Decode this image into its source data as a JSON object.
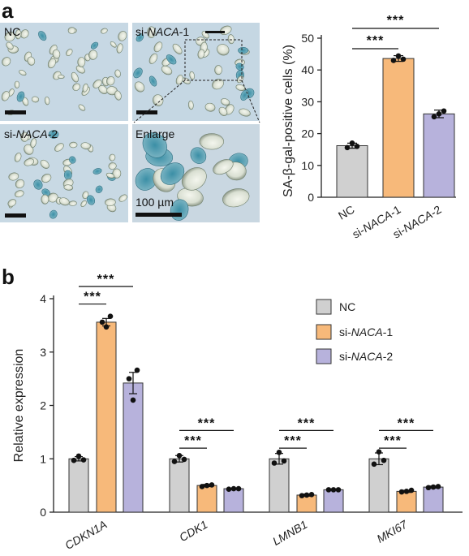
{
  "panel_a": {
    "letter": "a",
    "images": [
      {
        "label": "NC"
      },
      {
        "label_pre": "si-",
        "label_gene": "NACA",
        "label_post": "-1"
      },
      {
        "label_pre": "si-",
        "label_gene": "NACA",
        "label_post": "-2"
      },
      {
        "label": "Enlarge"
      }
    ],
    "scale_text": "100 µm"
  },
  "panel_b": {
    "letter": "b"
  },
  "colors": {
    "nc": "#d0d0d0",
    "naca1": "#f7b97a",
    "naca2": "#b7b2dc",
    "stroke": "#333333"
  },
  "chart_data": [
    {
      "type": "bar",
      "ylabel": "SA-β-gal-positive cells (%)",
      "ylim": [
        0,
        50
      ],
      "yticks": [
        0,
        10,
        20,
        30,
        40,
        50
      ],
      "categories": [
        {
          "pre": "",
          "gene": "",
          "post": "NC"
        },
        {
          "pre": "si-",
          "gene": "NACA",
          "post": "-1"
        },
        {
          "pre": "si-",
          "gene": "NACA",
          "post": "-2"
        }
      ],
      "values": [
        16.2,
        43.6,
        26.2
      ],
      "errors": [
        0.8,
        0.9,
        1.2
      ],
      "points": [
        [
          15.6,
          17.0,
          16.0
        ],
        [
          43.0,
          44.4,
          43.4
        ],
        [
          25.3,
          26.2,
          27.1
        ]
      ],
      "significance": [
        {
          "from": 0,
          "to": 1,
          "label": "***"
        },
        {
          "from": 0,
          "to": 2,
          "label": "***"
        }
      ]
    },
    {
      "type": "bar",
      "ylabel": "Relative expression",
      "ylim": [
        0,
        4
      ],
      "yticks": [
        0,
        1,
        2,
        3,
        4
      ],
      "categories": [
        "CDKN1A",
        "CDK1",
        "LMNB1",
        "MKI67"
      ],
      "series": [
        {
          "pre": "",
          "gene": "",
          "post": "NC",
          "values": [
            1.0,
            1.0,
            1.0,
            1.0
          ],
          "errors": [
            0.04,
            0.06,
            0.1,
            0.11
          ],
          "points": [
            [
              0.97,
              1.05,
              0.98
            ],
            [
              0.95,
              1.06,
              0.99
            ],
            [
              0.92,
              1.12,
              0.96
            ],
            [
              0.9,
              1.13,
              0.97
            ]
          ]
        },
        {
          "pre": "si-",
          "gene": "NACA",
          "post": "-1",
          "values": [
            3.56,
            0.5,
            0.32,
            0.39
          ],
          "errors": [
            0.07,
            0.02,
            0.02,
            0.02
          ],
          "points": [
            [
              3.47,
              3.56,
              3.67
            ],
            [
              0.48,
              0.5,
              0.51
            ],
            [
              0.31,
              0.32,
              0.33
            ],
            [
              0.38,
              0.39,
              0.41
            ]
          ]
        },
        {
          "pre": "si-",
          "gene": "NACA",
          "post": "-2",
          "values": [
            2.42,
            0.44,
            0.42,
            0.47
          ],
          "errors": [
            0.2,
            0.01,
            0.01,
            0.02
          ],
          "points": [
            [
              2.1,
              2.5,
              2.66
            ],
            [
              0.43,
              0.44,
              0.44
            ],
            [
              0.42,
              0.42,
              0.42
            ],
            [
              0.46,
              0.47,
              0.48
            ]
          ]
        }
      ],
      "legend_position": "top-right",
      "significance_label": "***"
    }
  ]
}
